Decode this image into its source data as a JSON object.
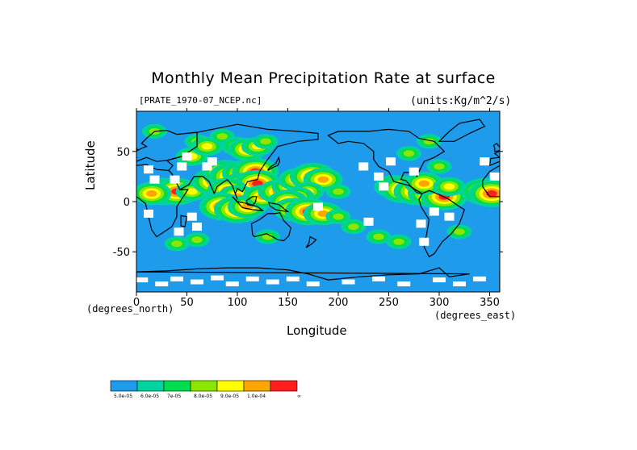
{
  "chart_data": {
    "type": "heatmap",
    "title": "Monthly Mean Precipitation Rate at surface",
    "subtitle_left": "[PRATE_1970-07_NCEP.nc]",
    "subtitle_right": "(units:Kg/m^2/s)",
    "xlabel": "Longitude",
    "ylabel": "Latitude",
    "x_units_label": "(degrees_east)",
    "y_units_label": "(degrees_north)",
    "xlim": [
      0,
      360
    ],
    "ylim": [
      -90,
      90
    ],
    "x_ticks": [
      0,
      50,
      100,
      150,
      200,
      250,
      300,
      350
    ],
    "y_ticks": [
      50,
      0,
      -50
    ],
    "x_tick_labels": [
      "0",
      "50",
      "100",
      "150",
      "200",
      "250",
      "300",
      "350"
    ],
    "y_tick_labels": [
      "50",
      "0",
      "-50"
    ],
    "colors": {
      "background": "#1E9BEB",
      "missing": "#FFFFFF",
      "coastline": "#000000",
      "levels": [
        "#1E9BEB",
        "#00D2A0",
        "#00DC50",
        "#8CE600",
        "#FFFF00",
        "#FFA500",
        "#FF1E1E"
      ]
    },
    "colorbar": {
      "labels": [
        "5.0e-05",
        "6.0e-05",
        "7e-05",
        "8.0e-05",
        "9.0e-05",
        "1.0e-04",
        "∞"
      ]
    },
    "rain_cells": [
      {
        "lon": 18,
        "lat": 70,
        "level": 3
      },
      {
        "lon": 27,
        "lat": 10,
        "level": 6
      },
      {
        "lon": 40,
        "lat": 10,
        "level": 6
      },
      {
        "lon": 15,
        "lat": 8,
        "level": 5
      },
      {
        "lon": 55,
        "lat": 10,
        "level": 4
      },
      {
        "lon": 55,
        "lat": 45,
        "level": 4
      },
      {
        "lon": 60,
        "lat": 60,
        "level": 3
      },
      {
        "lon": 70,
        "lat": 55,
        "level": 4
      },
      {
        "lon": 85,
        "lat": 65,
        "level": 3
      },
      {
        "lon": 100,
        "lat": 55,
        "level": 4
      },
      {
        "lon": 110,
        "lat": 52,
        "level": 5
      },
      {
        "lon": 120,
        "lat": 55,
        "level": 4
      },
      {
        "lon": 128,
        "lat": 60,
        "level": 3
      },
      {
        "lon": 78,
        "lat": 20,
        "level": 6
      },
      {
        "lon": 88,
        "lat": 28,
        "level": 6
      },
      {
        "lon": 95,
        "lat": 25,
        "level": 6
      },
      {
        "lon": 108,
        "lat": 28,
        "level": 6
      },
      {
        "lon": 118,
        "lat": 30,
        "level": 6
      },
      {
        "lon": 105,
        "lat": 15,
        "level": 6
      },
      {
        "lon": 120,
        "lat": 18,
        "level": 6
      },
      {
        "lon": 90,
        "lat": 12,
        "level": 5
      },
      {
        "lon": 100,
        "lat": 5,
        "level": 5
      },
      {
        "lon": 82,
        "lat": 0,
        "level": 4
      },
      {
        "lon": 85,
        "lat": -5,
        "level": 6
      },
      {
        "lon": 100,
        "lat": -8,
        "level": 6
      },
      {
        "lon": 110,
        "lat": -5,
        "level": 5
      },
      {
        "lon": 125,
        "lat": 5,
        "level": 5
      },
      {
        "lon": 140,
        "lat": 10,
        "level": 5
      },
      {
        "lon": 150,
        "lat": 15,
        "level": 4
      },
      {
        "lon": 160,
        "lat": 22,
        "level": 5
      },
      {
        "lon": 175,
        "lat": 25,
        "level": 6
      },
      {
        "lon": 185,
        "lat": 22,
        "level": 5
      },
      {
        "lon": 170,
        "lat": 10,
        "level": 4
      },
      {
        "lon": 160,
        "lat": 5,
        "level": 4
      },
      {
        "lon": 200,
        "lat": 10,
        "level": 3
      },
      {
        "lon": 150,
        "lat": 0,
        "level": 5
      },
      {
        "lon": 155,
        "lat": -8,
        "level": 5
      },
      {
        "lon": 170,
        "lat": -10,
        "level": 6
      },
      {
        "lon": 185,
        "lat": -12,
        "level": 5
      },
      {
        "lon": 200,
        "lat": -15,
        "level": 3
      },
      {
        "lon": 215,
        "lat": -25,
        "level": 3
      },
      {
        "lon": 240,
        "lat": -35,
        "level": 3
      },
      {
        "lon": 260,
        "lat": -40,
        "level": 3
      },
      {
        "lon": 130,
        "lat": -35,
        "level": 3
      },
      {
        "lon": 40,
        "lat": -42,
        "level": 3
      },
      {
        "lon": 60,
        "lat": -38,
        "level": 3
      },
      {
        "lon": 290,
        "lat": 60,
        "level": 3
      },
      {
        "lon": 270,
        "lat": 48,
        "level": 3
      },
      {
        "lon": 255,
        "lat": 15,
        "level": 5
      },
      {
        "lon": 265,
        "lat": 12,
        "level": 6
      },
      {
        "lon": 278,
        "lat": 10,
        "level": 6
      },
      {
        "lon": 292,
        "lat": 8,
        "level": 6
      },
      {
        "lon": 305,
        "lat": 5,
        "level": 6
      },
      {
        "lon": 285,
        "lat": 18,
        "level": 5
      },
      {
        "lon": 310,
        "lat": 15,
        "level": 4
      },
      {
        "lon": 300,
        "lat": 35,
        "level": 3
      },
      {
        "lon": 345,
        "lat": 10,
        "level": 6
      },
      {
        "lon": 352,
        "lat": 8,
        "level": 6
      },
      {
        "lon": 320,
        "lat": -30,
        "level": 3
      }
    ],
    "missing_cells": [
      {
        "lon": 50,
        "lat": 45
      },
      {
        "lon": 45,
        "lat": 35
      },
      {
        "lon": 70,
        "lat": 35
      },
      {
        "lon": 75,
        "lat": 40
      },
      {
        "lon": 38,
        "lat": 22
      },
      {
        "lon": 18,
        "lat": 22
      },
      {
        "lon": 12,
        "lat": 32
      },
      {
        "lon": 12,
        "lat": -12
      },
      {
        "lon": 55,
        "lat": -15
      },
      {
        "lon": 60,
        "lat": -25
      },
      {
        "lon": 42,
        "lat": -30
      },
      {
        "lon": 225,
        "lat": 35
      },
      {
        "lon": 240,
        "lat": 25
      },
      {
        "lon": 245,
        "lat": 15
      },
      {
        "lon": 252,
        "lat": 40
      },
      {
        "lon": 275,
        "lat": 30
      },
      {
        "lon": 295,
        "lat": -10
      },
      {
        "lon": 310,
        "lat": -15
      },
      {
        "lon": 282,
        "lat": -22
      },
      {
        "lon": 285,
        "lat": -40
      },
      {
        "lon": 345,
        "lat": 40
      },
      {
        "lon": 355,
        "lat": 25
      },
      {
        "lon": 180,
        "lat": -5
      },
      {
        "lon": 230,
        "lat": -20
      }
    ],
    "antarctic_missing": [
      {
        "lon": 5,
        "lat": -78
      },
      {
        "lon": 25,
        "lat": -82
      },
      {
        "lon": 40,
        "lat": -77
      },
      {
        "lon": 60,
        "lat": -80
      },
      {
        "lon": 80,
        "lat": -76
      },
      {
        "lon": 95,
        "lat": -82
      },
      {
        "lon": 115,
        "lat": -77
      },
      {
        "lon": 135,
        "lat": -80
      },
      {
        "lon": 155,
        "lat": -77
      },
      {
        "lon": 175,
        "lat": -82
      },
      {
        "lon": 210,
        "lat": -80
      },
      {
        "lon": 240,
        "lat": -77
      },
      {
        "lon": 265,
        "lat": -82
      },
      {
        "lon": 300,
        "lat": -78
      },
      {
        "lon": 320,
        "lat": -82
      },
      {
        "lon": 340,
        "lat": -77
      }
    ]
  }
}
